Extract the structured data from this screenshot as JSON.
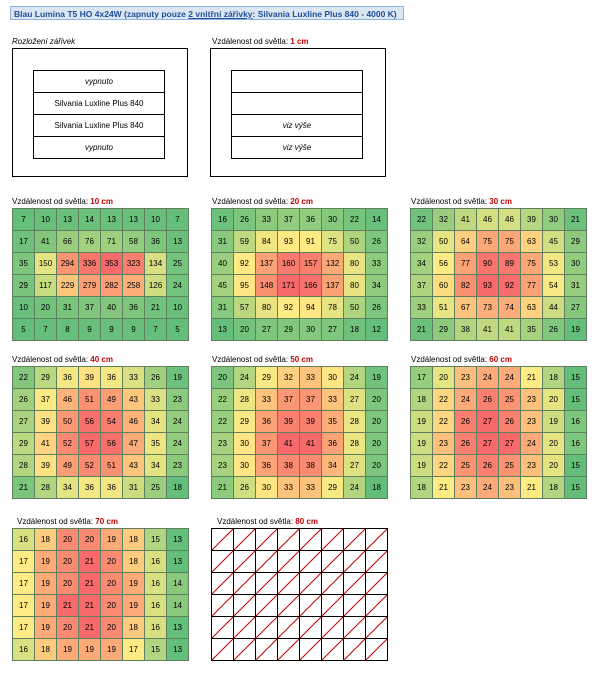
{
  "header": {
    "part1": "Blau Lumina T5 HO 4x24W (zapnuty pouze ",
    "underlined": "2 vnitřní zářivky",
    "part2": ": Silvania Luxline Plus 840 - 4000 K)"
  },
  "layout": {
    "title": "Rozložení zářivek",
    "rows": [
      "vypnuto",
      "Silvania Luxline Plus 840",
      "Silvania Luxline Plus 840",
      "vypnuto"
    ]
  },
  "distance_label": "Vzdálenost od světla: ",
  "dist1": {
    "value": "1 cm",
    "rows": [
      "",
      "",
      "viz výše",
      "viz výše"
    ]
  },
  "grids": [
    {
      "value": "10 cm",
      "rows": [
        [
          7,
          10,
          13,
          14,
          13,
          13,
          10,
          7
        ],
        [
          17,
          41,
          66,
          76,
          71,
          58,
          36,
          13
        ],
        [
          35,
          150,
          294,
          336,
          353,
          323,
          134,
          25
        ],
        [
          29,
          117,
          229,
          279,
          282,
          258,
          126,
          24
        ],
        [
          10,
          20,
          31,
          37,
          40,
          36,
          21,
          10
        ],
        [
          5,
          7,
          8,
          9,
          9,
          9,
          7,
          5
        ]
      ]
    },
    {
      "value": "20 cm",
      "rows": [
        [
          16,
          26,
          33,
          37,
          36,
          30,
          22,
          14
        ],
        [
          31,
          59,
          84,
          93,
          91,
          75,
          50,
          26
        ],
        [
          40,
          92,
          137,
          160,
          157,
          132,
          80,
          33
        ],
        [
          45,
          95,
          148,
          171,
          166,
          137,
          80,
          34
        ],
        [
          31,
          57,
          80,
          92,
          94,
          78,
          50,
          26
        ],
        [
          13,
          20,
          27,
          29,
          30,
          27,
          18,
          12
        ]
      ]
    },
    {
      "value": "30 cm",
      "rows": [
        [
          22,
          32,
          41,
          46,
          46,
          39,
          30,
          21
        ],
        [
          32,
          50,
          64,
          75,
          75,
          63,
          45,
          29
        ],
        [
          34,
          56,
          77,
          90,
          89,
          75,
          53,
          30
        ],
        [
          37,
          60,
          82,
          93,
          92,
          77,
          54,
          31
        ],
        [
          33,
          51,
          67,
          73,
          74,
          63,
          44,
          27
        ],
        [
          21,
          29,
          38,
          41,
          41,
          35,
          26,
          19
        ]
      ]
    },
    {
      "value": "40 cm",
      "rows": [
        [
          22,
          29,
          36,
          39,
          36,
          33,
          26,
          19
        ],
        [
          26,
          37,
          46,
          51,
          49,
          43,
          33,
          23
        ],
        [
          27,
          39,
          50,
          56,
          54,
          46,
          34,
          24
        ],
        [
          29,
          41,
          52,
          57,
          56,
          47,
          35,
          24
        ],
        [
          28,
          39,
          49,
          52,
          51,
          43,
          34,
          23
        ],
        [
          21,
          28,
          34,
          36,
          36,
          31,
          25,
          18
        ]
      ]
    },
    {
      "value": "50 cm",
      "rows": [
        [
          20,
          24,
          29,
          32,
          33,
          30,
          24,
          19
        ],
        [
          22,
          28,
          33,
          37,
          37,
          33,
          27,
          20
        ],
        [
          22,
          29,
          36,
          39,
          39,
          35,
          28,
          20
        ],
        [
          23,
          30,
          37,
          41,
          41,
          36,
          28,
          20
        ],
        [
          23,
          30,
          36,
          38,
          38,
          34,
          27,
          20
        ],
        [
          21,
          26,
          30,
          33,
          33,
          29,
          24,
          18
        ]
      ]
    },
    {
      "value": "60 cm",
      "rows": [
        [
          17,
          20,
          23,
          24,
          24,
          21,
          18,
          15
        ],
        [
          18,
          22,
          24,
          26,
          25,
          23,
          20,
          15
        ],
        [
          19,
          22,
          26,
          27,
          26,
          23,
          19,
          16
        ],
        [
          19,
          23,
          26,
          27,
          27,
          24,
          20,
          16
        ],
        [
          19,
          22,
          25,
          26,
          25,
          23,
          20,
          15
        ],
        [
          18,
          21,
          23,
          24,
          23,
          21,
          18,
          15
        ]
      ]
    },
    {
      "value": "70 cm",
      "rows": [
        [
          16,
          18,
          20,
          20,
          19,
          18,
          15,
          13
        ],
        [
          17,
          19,
          20,
          21,
          20,
          18,
          16,
          13
        ],
        [
          17,
          19,
          20,
          21,
          20,
          19,
          16,
          14
        ],
        [
          17,
          19,
          21,
          21,
          20,
          19,
          16,
          14
        ],
        [
          17,
          19,
          20,
          21,
          20,
          18,
          16,
          13
        ],
        [
          16,
          18,
          19,
          19,
          19,
          17,
          15,
          13
        ]
      ]
    }
  ],
  "dist80": {
    "value": "80 cm"
  },
  "colors": {
    "green": "#63be7b",
    "yellow": "#ffeb84",
    "red": "#f8696b",
    "caption_red": "#c00000",
    "header_bg": "#dce6f1",
    "header_text": "#1f4e9a"
  }
}
